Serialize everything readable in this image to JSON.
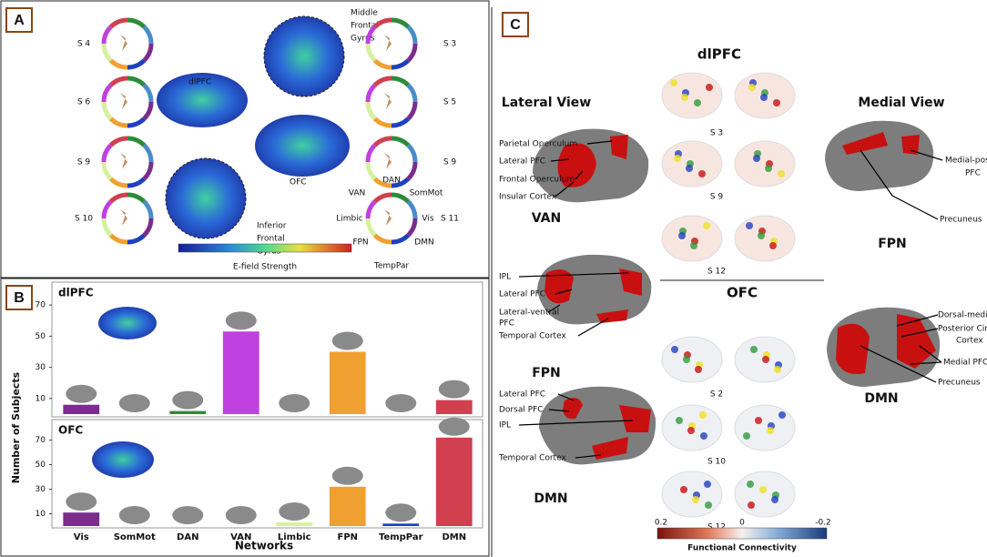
{
  "panel_a": {
    "label": "A",
    "left_subjects": [
      "S 4",
      "S 6",
      "S 9",
      "S 10"
    ],
    "right_subjects": [
      "S 3",
      "S 5",
      "S 9",
      "S 11"
    ],
    "dlpfc": "dlPFC",
    "ofc": "OFC",
    "middle_gyrus": [
      "Middle",
      "Frontal",
      "Gyrus"
    ],
    "inferior_gyrus": [
      "Inferior",
      "Frontal",
      "Gyrus"
    ],
    "colorbar_label": "E-field Strength",
    "networks": {
      "dan": "DAN",
      "van": "VAN",
      "sommot": "SomMot",
      "limbic": "Limbic",
      "vis": "Vis",
      "fpn": "FPN",
      "dmn": "DMN",
      "temppar": "TempPar"
    }
  },
  "panel_b_label": "B",
  "chart_data": [
    {
      "type": "bar",
      "title": "dlPFC",
      "y_label": "Number of Subjects",
      "values": [
        6,
        0,
        2,
        53,
        0,
        40,
        0,
        9
      ],
      "colors": [
        "#7b2d8b",
        "#4a8cc8",
        "#2e8b3a",
        "#c040e0",
        "#d6f0a0",
        "#f0a030",
        "#2040c0",
        "#d0404f"
      ],
      "ylim": [
        0,
        80
      ],
      "yticks": [
        10,
        30,
        50,
        70
      ]
    },
    {
      "type": "bar",
      "title": "OFC",
      "x_label": "Networks",
      "categories": [
        "Vis",
        "SomMot",
        "DAN",
        "VAN",
        "Limbic",
        "FPN",
        "TempPar",
        "DMN"
      ],
      "values": [
        11,
        0,
        0,
        0,
        3,
        32,
        2,
        72
      ],
      "colors": [
        "#7b2d8b",
        "#4a8cc8",
        "#2e8b3a",
        "#c040e0",
        "#d6f0a0",
        "#f0a030",
        "#2040c0",
        "#d0404f"
      ],
      "ylim": [
        0,
        80
      ],
      "yticks": [
        10,
        30,
        50,
        70
      ]
    }
  ],
  "panel_c": {
    "label": "C",
    "dlpfc": "dlPFC",
    "ofc": "OFC",
    "lateral_view": "Lateral View",
    "medial_view": "Medial View",
    "dlpfc_subjects": [
      "S 3",
      "S 9",
      "S 12"
    ],
    "ofc_subjects": [
      "S 2",
      "S 10",
      "S 12"
    ],
    "van": {
      "name": "VAN",
      "labels": [
        "Parietal Operculum",
        "Lateral PFC",
        "Frontal Operculum",
        "Insular Cortex"
      ]
    },
    "fpn_lateral": {
      "name": "FPN",
      "labels": [
        "IPL",
        "Lateral PFC",
        "Lateral-ventral",
        "PFC",
        "Temporal Cortex"
      ]
    },
    "dmn_lateral": {
      "name": "DMN",
      "labels": [
        "Lateral PFC",
        "Dorsal PFC",
        "IPL",
        "Temporal Cortex"
      ]
    },
    "fpn_medial": {
      "name": "FPN",
      "labels": [
        "Medial-posterior",
        "PFC",
        "Precuneus"
      ]
    },
    "dmn_medial": {
      "name": "DMN",
      "labels": [
        "Dorsal-medial PFC",
        "Posterior Cingulate",
        "Cortex",
        "Medial PFC",
        "Precuneus"
      ]
    },
    "colorbar_ticks": [
      "0.2",
      "0",
      "-0.2"
    ],
    "colorbar_label": "Functional Connectivity"
  }
}
